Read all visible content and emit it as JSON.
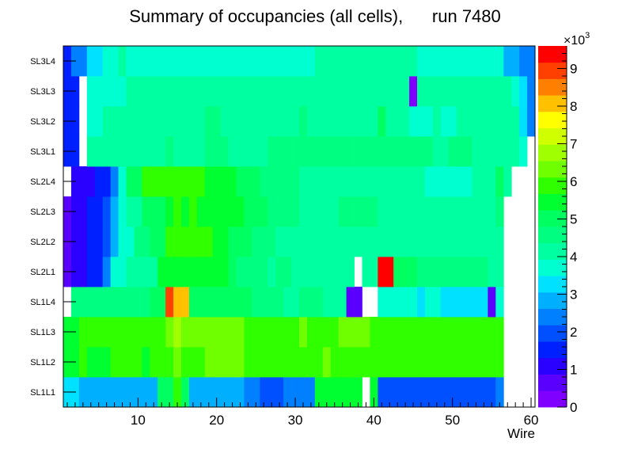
{
  "chart_data": {
    "type": "heatmap",
    "title": "Summary of occupancies (all cells),      run 7480",
    "xlabel": "Wire",
    "ylabel": "",
    "xlim": [
      0.5,
      60.5
    ],
    "x_ticks": [
      10,
      20,
      30,
      40,
      50,
      60
    ],
    "y_categories": [
      "SL1L1",
      "SL1L2",
      "SL1L3",
      "SL1L4",
      "SL2L1",
      "SL2L2",
      "SL2L3",
      "SL2L4",
      "SL3L1",
      "SL3L2",
      "SL3L3",
      "SL3L4"
    ],
    "colorbar": {
      "range": [
        0,
        9600
      ],
      "exponent_label": "×10",
      "exponent_power": "3",
      "tick_values": [
        0,
        1,
        2,
        3,
        4,
        5,
        6,
        7,
        8,
        9
      ],
      "tick_labels": [
        "0",
        "1",
        "2",
        "3",
        "4",
        "5",
        "6",
        "7",
        "8",
        "9"
      ],
      "palette": [
        "#8000ff",
        "#5a00ff",
        "#2a00ff",
        "#0020ff",
        "#0050ff",
        "#0080ff",
        "#00b0ff",
        "#00e0ff",
        "#00ffd0",
        "#00ffa0",
        "#00ff80",
        "#00ff60",
        "#00ff30",
        "#30ff00",
        "#70ff00",
        "#a0ff00",
        "#d0ff00",
        "#ffff00",
        "#ffc000",
        "#ff8000",
        "#ff4000",
        "#ff0000"
      ]
    },
    "z": [
      [
        3400,
        3400,
        2800,
        2800,
        3000,
        2800,
        2800,
        3000,
        3000,
        2800,
        3000,
        3000,
        5000,
        5000,
        6000,
        5000,
        2800,
        3000,
        3000,
        3000,
        3000,
        3000,
        2700,
        2400,
        2400,
        2000,
        2000,
        1800,
        2400,
        2400,
        2400,
        2400,
        5500,
        5500,
        5500,
        5500,
        5500,
        5500,
        0,
        5500,
        2000,
        1800,
        1800,
        1800,
        1800,
        1800,
        1800,
        1800,
        1800,
        1800,
        1800,
        1800,
        1800,
        1800,
        1800,
        2400,
        0,
        0,
        0,
        0
      ],
      [
        5400,
        5400,
        5700,
        5400,
        5400,
        5400,
        5700,
        5700,
        5700,
        5700,
        5400,
        5700,
        5700,
        5700,
        6300,
        6000,
        6000,
        6000,
        6300,
        6300,
        6300,
        6300,
        6300,
        6000,
        6000,
        6000,
        6000,
        6000,
        6000,
        6000,
        6000,
        6000,
        6000,
        6300,
        6000,
        6000,
        6000,
        6000,
        6000,
        5700,
        5700,
        5700,
        6000,
        6000,
        6000,
        6000,
        6000,
        6000,
        5700,
        6000,
        6000,
        6000,
        6000,
        6000,
        6000,
        6000,
        0,
        0,
        0,
        0
      ],
      [
        5400,
        5400,
        5700,
        5700,
        5700,
        5700,
        5700,
        5700,
        5700,
        6000,
        6000,
        6000,
        6000,
        6300,
        6800,
        6300,
        6300,
        6300,
        6300,
        6300,
        6300,
        6300,
        6300,
        6000,
        6000,
        6000,
        5700,
        5700,
        6000,
        6000,
        6300,
        6000,
        6000,
        6000,
        6000,
        6300,
        6300,
        6300,
        6300,
        6000,
        6000,
        6000,
        6000,
        6000,
        6000,
        6000,
        5700,
        6000,
        6000,
        6000,
        6000,
        6000,
        6000,
        6000,
        6000,
        6000,
        0,
        0,
        0,
        0
      ],
      [
        0,
        4500,
        4500,
        4500,
        4500,
        4500,
        4500,
        4500,
        4500,
        4500,
        4500,
        4800,
        5000,
        9000,
        8000,
        8000,
        5200,
        5200,
        5200,
        5200,
        5200,
        5000,
        4800,
        4800,
        4500,
        4500,
        4500,
        4500,
        4200,
        4200,
        4500,
        4500,
        4500,
        4200,
        4200,
        4200,
        600,
        600,
        0,
        0,
        3800,
        3800,
        3800,
        3800,
        3800,
        3200,
        3500,
        3500,
        3200,
        3200,
        3200,
        3200,
        3200,
        3200,
        600,
        3800,
        0,
        0,
        0,
        0
      ],
      [
        800,
        1000,
        1000,
        1500,
        1500,
        2500,
        3800,
        3800,
        4300,
        4300,
        4300,
        4300,
        5500,
        5500,
        5500,
        5500,
        5500,
        5500,
        5500,
        5500,
        5500,
        5000,
        4500,
        4500,
        4500,
        4500,
        4000,
        4500,
        4500,
        4000,
        4000,
        4000,
        4000,
        4000,
        4000,
        4000,
        4000,
        0,
        4000,
        4000,
        9500,
        9500,
        4800,
        4800,
        4800,
        4500,
        4500,
        4500,
        4500,
        4500,
        4500,
        4500,
        4500,
        4500,
        4000,
        4000,
        0,
        0,
        0,
        0
      ],
      [
        800,
        1000,
        1000,
        1500,
        1500,
        2000,
        2900,
        3800,
        3800,
        4500,
        4500,
        5000,
        5000,
        6000,
        6000,
        6000,
        6000,
        6000,
        6000,
        5500,
        5500,
        5000,
        5000,
        5000,
        4500,
        4500,
        4500,
        4300,
        4300,
        4300,
        4300,
        4300,
        4000,
        4000,
        4000,
        4000,
        4000,
        4000,
        4000,
        4000,
        4000,
        4000,
        4000,
        4000,
        4000,
        4000,
        4000,
        4000,
        4000,
        4000,
        4000,
        4000,
        4000,
        4000,
        4000,
        4300,
        0,
        0,
        0,
        0
      ],
      [
        800,
        1000,
        1000,
        1500,
        1500,
        2000,
        2800,
        3800,
        4300,
        4300,
        5000,
        5000,
        5000,
        5400,
        5700,
        5400,
        5700,
        5400,
        5400,
        5400,
        5400,
        5400,
        5400,
        5000,
        5000,
        5000,
        4500,
        4500,
        4500,
        4500,
        4300,
        4300,
        4300,
        4000,
        4000,
        4500,
        4500,
        4500,
        4500,
        4500,
        4000,
        4000,
        4000,
        4000,
        4000,
        4000,
        4000,
        4000,
        4000,
        4000,
        4000,
        4000,
        4000,
        4000,
        4000,
        4500,
        0,
        0,
        0,
        0
      ],
      [
        0,
        1000,
        1000,
        1000,
        1500,
        1500,
        2500,
        3500,
        5000,
        5000,
        5700,
        5700,
        5700,
        5700,
        5700,
        5700,
        5700,
        5700,
        5400,
        5400,
        5400,
        5400,
        5000,
        5000,
        5000,
        4500,
        4500,
        4500,
        4500,
        4500,
        4300,
        4000,
        4000,
        4000,
        4000,
        4000,
        4000,
        4000,
        4000,
        4000,
        4000,
        4000,
        4000,
        4000,
        4000,
        4000,
        3700,
        3700,
        3700,
        3700,
        3700,
        3700,
        4000,
        4000,
        4000,
        5000,
        4000,
        0,
        0,
        0
      ],
      [
        1500,
        1500,
        0,
        4300,
        4300,
        4000,
        4300,
        4300,
        4300,
        4300,
        4300,
        4300,
        4300,
        4500,
        4300,
        4300,
        4000,
        4000,
        4500,
        4500,
        4500,
        4000,
        4000,
        4000,
        4000,
        4000,
        4500,
        4500,
        4500,
        4500,
        4500,
        4500,
        4500,
        4500,
        4500,
        4500,
        4500,
        4500,
        4500,
        4500,
        4500,
        4500,
        4500,
        4500,
        4500,
        4500,
        4500,
        4000,
        4000,
        4500,
        4500,
        4500,
        4300,
        4300,
        4300,
        4300,
        4000,
        4000,
        3700,
        0
      ],
      [
        1500,
        1500,
        0,
        3700,
        3800,
        4300,
        4300,
        4300,
        4300,
        4300,
        4300,
        4300,
        4300,
        4300,
        4300,
        4300,
        4300,
        4300,
        4500,
        4500,
        4300,
        4300,
        4300,
        4300,
        4000,
        4000,
        4000,
        4000,
        4000,
        4300,
        4500,
        4300,
        4000,
        4000,
        4000,
        4000,
        4000,
        4000,
        4000,
        4300,
        4800,
        4300,
        4300,
        4300,
        3700,
        3700,
        3700,
        4000,
        3700,
        3700,
        4000,
        4000,
        4000,
        4000,
        4000,
        4000,
        4000,
        4000,
        3200,
        2600
      ],
      [
        1500,
        1500,
        0,
        3700,
        3800,
        3700,
        3700,
        3700,
        4000,
        4000,
        4000,
        4000,
        4000,
        4000,
        4000,
        4000,
        4000,
        4000,
        4000,
        4000,
        4000,
        4000,
        4000,
        4000,
        4000,
        4000,
        4000,
        4000,
        4000,
        4000,
        4000,
        4000,
        4000,
        4000,
        4000,
        4000,
        4000,
        4000,
        4000,
        4000,
        4000,
        4000,
        4000,
        4000,
        300,
        4000,
        4000,
        4000,
        4000,
        4000,
        4000,
        4000,
        4000,
        4000,
        4000,
        4000,
        4000,
        3700,
        3200,
        2600
      ],
      [
        1500,
        2500,
        2500,
        3300,
        3300,
        3500,
        3500,
        4000,
        3700,
        3700,
        3700,
        3700,
        3700,
        3700,
        3700,
        3700,
        3700,
        3700,
        3700,
        3700,
        3700,
        3700,
        3700,
        3700,
        3700,
        3700,
        3700,
        3700,
        3700,
        3700,
        3700,
        3700,
        4000,
        4000,
        4000,
        4000,
        4000,
        4000,
        4000,
        4000,
        4000,
        4000,
        4000,
        4000,
        4000,
        3700,
        3700,
        3700,
        3700,
        3700,
        3700,
        3700,
        3700,
        3700,
        3700,
        3700,
        3000,
        3000,
        2500,
        2500
      ]
    ]
  }
}
